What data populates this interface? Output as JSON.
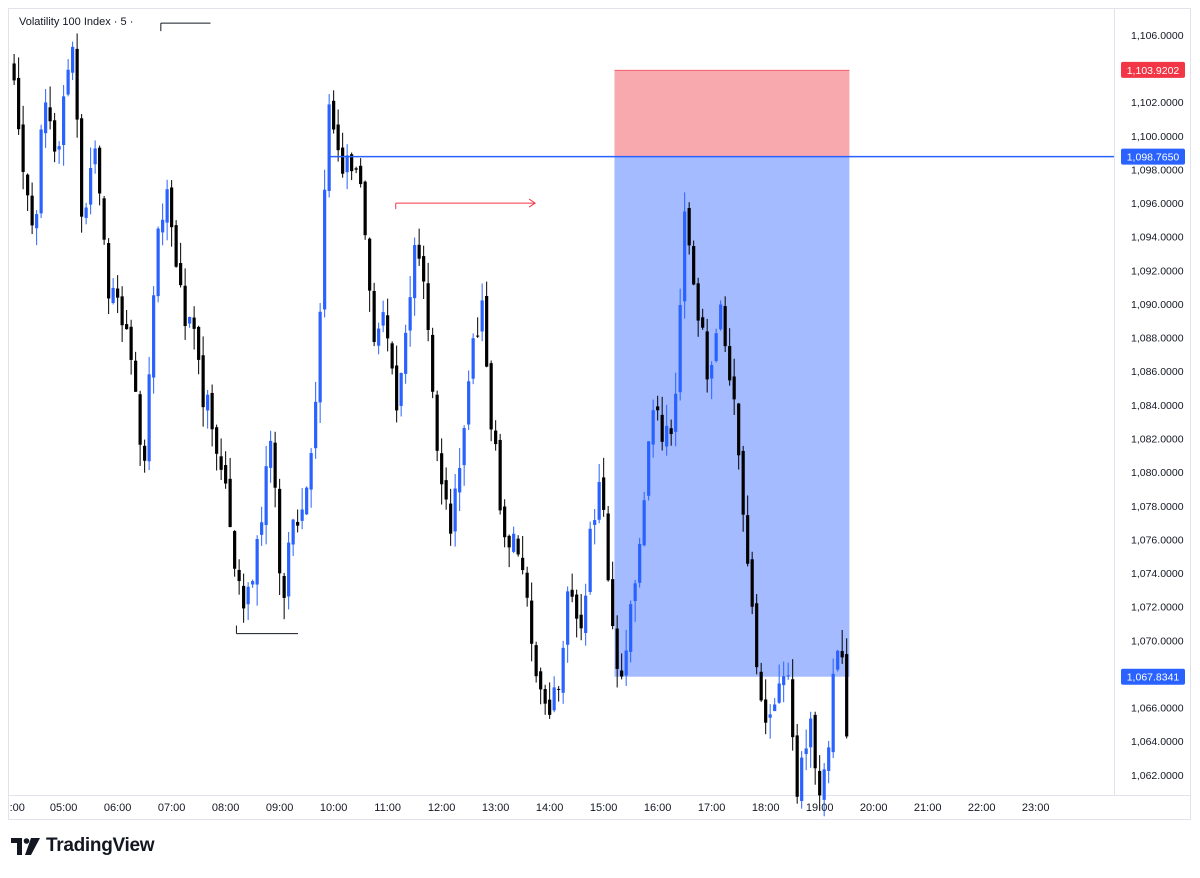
{
  "legend": {
    "symbol": "Volatility 100 Index",
    "separator": "·",
    "interval": "5",
    "trail": "·"
  },
  "brand": {
    "name": "TradingView",
    "logo_icon": "tradingview-logo-icon"
  },
  "colors": {
    "up_candle": "#2962ff",
    "down_candle": "#000000",
    "entry_line": "#2962ff",
    "stop_zone": "#f7a9ae",
    "target_zone": "#a4bbff",
    "stop_label": "#f23645",
    "entry_label": "#2962ff",
    "arrow": "#f23645"
  },
  "chart_data": {
    "type": "candlestick",
    "symbol": "Volatility 100 Index",
    "interval": "5",
    "y_axis": {
      "ticks": [
        "1,062.0000",
        "1,064.0000",
        "1,066.0000",
        "1,068.0000",
        "1,070.0000",
        "1,072.0000",
        "1,074.0000",
        "1,076.0000",
        "1,078.0000",
        "1,080.0000",
        "1,082.0000",
        "1,084.0000",
        "1,086.0000",
        "1,088.0000",
        "1,090.0000",
        "1,092.0000",
        "1,094.0000",
        "1,096.0000",
        "1,098.0000",
        "1,100.0000",
        "1,102.0000",
        "1,104.0000",
        "1,106.0000"
      ],
      "tick_values": [
        1062,
        1064,
        1066,
        1068,
        1070,
        1072,
        1074,
        1076,
        1078,
        1080,
        1082,
        1084,
        1086,
        1088,
        1090,
        1092,
        1094,
        1096,
        1098,
        1100,
        1102,
        1104,
        1106
      ],
      "range": [
        1060.8,
        1107.6
      ]
    },
    "x_axis": {
      "ticks": [
        ":00",
        "05:00",
        "06:00",
        "07:00",
        "08:00",
        "09:00",
        "10:00",
        "11:00",
        "12:00",
        "13:00",
        "14:00",
        "15:00",
        "16:00",
        "17:00",
        "18:00",
        "19:00",
        "20:00",
        "21:00",
        "22:00",
        "23:00"
      ],
      "tick_hours": [
        4,
        5,
        6,
        7,
        8,
        9,
        10,
        11,
        12,
        13,
        14,
        15,
        16,
        17,
        18,
        19,
        20,
        21,
        22,
        23
      ],
      "range_hours": [
        3.97,
        24.45
      ]
    },
    "price_labels": {
      "stop": "1,103.9202",
      "entry": "1,098.7650",
      "target": "1,067.8341"
    },
    "position": {
      "side": "short",
      "entry": 1098.765,
      "stop": 1103.9202,
      "target": 1067.8341,
      "start_hour": 15.2,
      "end_hour": 19.55
    },
    "annotations": [
      {
        "kind": "level",
        "price": 1106.7,
        "from_hour": 6.8,
        "to_hour": 7.72
      },
      {
        "kind": "level",
        "price": 1070.4,
        "from_hour": 8.2,
        "to_hour": 9.34
      },
      {
        "kind": "arrow",
        "price": 1096.0,
        "from_hour": 11.15,
        "to_hour": 13.73
      }
    ],
    "anchors": [
      [
        4.0,
        1104.6
      ],
      [
        4.25,
        1098.9
      ],
      [
        4.45,
        1093.8
      ],
      [
        4.65,
        1102.3
      ],
      [
        4.9,
        1099.3
      ],
      [
        5.15,
        1105.6
      ],
      [
        5.35,
        1095.4
      ],
      [
        5.55,
        1099.5
      ],
      [
        5.8,
        1091.3
      ],
      [
        6.1,
        1089.6
      ],
      [
        6.3,
        1084.5
      ],
      [
        6.5,
        1080.2
      ],
      [
        6.7,
        1092.2
      ],
      [
        6.9,
        1097.6
      ],
      [
        7.15,
        1090.1
      ],
      [
        7.4,
        1089.0
      ],
      [
        7.55,
        1084.8
      ],
      [
        7.8,
        1082.1
      ],
      [
        8.0,
        1078.6
      ],
      [
        8.2,
        1073.9
      ],
      [
        8.35,
        1071.4
      ],
      [
        8.6,
        1075.7
      ],
      [
        8.85,
        1082.2
      ],
      [
        9.05,
        1071.8
      ],
      [
        9.25,
        1078.2
      ],
      [
        9.4,
        1076.6
      ],
      [
        9.6,
        1080.4
      ],
      [
        9.75,
        1090.1
      ],
      [
        9.92,
        1102.1
      ],
      [
        10.1,
        1098.8
      ],
      [
        10.4,
        1098.1
      ],
      [
        10.55,
        1095.5
      ],
      [
        10.75,
        1086.8
      ],
      [
        10.95,
        1090.0
      ],
      [
        11.15,
        1083.2
      ],
      [
        11.35,
        1088.4
      ],
      [
        11.55,
        1093.8
      ],
      [
        11.75,
        1087.9
      ],
      [
        11.95,
        1080.7
      ],
      [
        12.15,
        1076.8
      ],
      [
        12.35,
        1081.7
      ],
      [
        12.55,
        1086.2
      ],
      [
        12.75,
        1091.2
      ],
      [
        12.95,
        1082.0
      ],
      [
        13.15,
        1077.1
      ],
      [
        13.35,
        1075.4
      ],
      [
        13.55,
        1072.7
      ],
      [
        13.75,
        1068.6
      ],
      [
        13.95,
        1064.5
      ],
      [
        14.15,
        1067.6
      ],
      [
        14.35,
        1072.4
      ],
      [
        14.55,
        1070.3
      ],
      [
        14.75,
        1075.6
      ],
      [
        14.95,
        1081.0
      ],
      [
        15.1,
        1072.1
      ],
      [
        15.3,
        1067.7
      ],
      [
        15.55,
        1073.1
      ],
      [
        15.75,
        1079.1
      ],
      [
        15.95,
        1085.1
      ],
      [
        16.1,
        1081.8
      ],
      [
        16.3,
        1083.4
      ],
      [
        16.5,
        1095.0
      ],
      [
        16.75,
        1089.4
      ],
      [
        16.95,
        1085.1
      ],
      [
        17.15,
        1089.2
      ],
      [
        17.35,
        1085.3
      ],
      [
        17.5,
        1081.3
      ],
      [
        17.7,
        1073.7
      ],
      [
        17.85,
        1068.5
      ],
      [
        18.0,
        1064.2
      ],
      [
        18.2,
        1066.6
      ],
      [
        18.4,
        1068.4
      ],
      [
        18.6,
        1061.0
      ],
      [
        18.8,
        1064.9
      ],
      [
        19.0,
        1061.5
      ],
      [
        19.2,
        1063.6
      ],
      [
        19.3,
        1071.1
      ],
      [
        19.42,
        1068.0
      ],
      [
        19.5,
        1064.0
      ],
      [
        19.55,
        1061.6
      ]
    ]
  }
}
